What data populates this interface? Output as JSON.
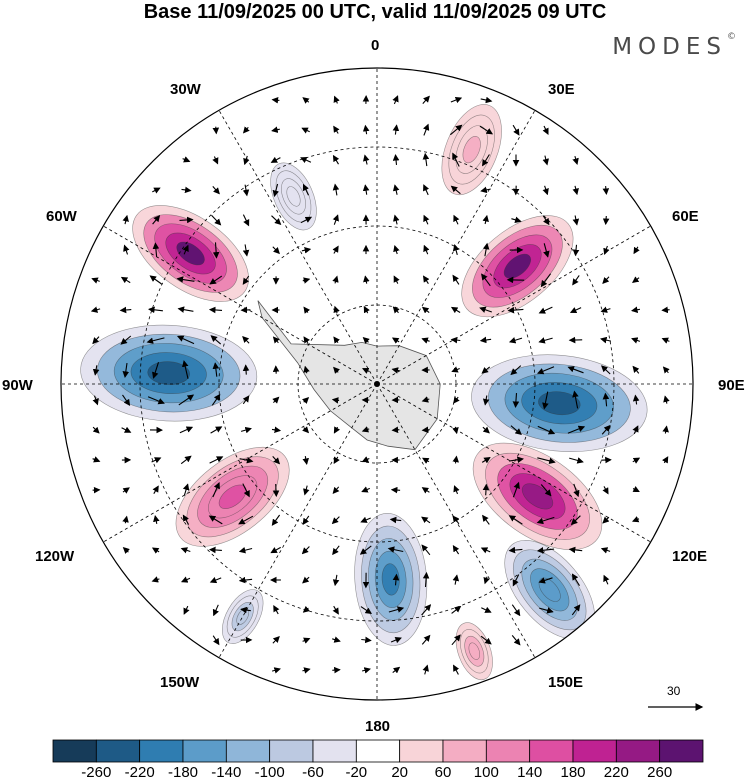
{
  "title": "Base 11/09/2025 00 UTC, valid 11/09/2025 09 UTC",
  "brand": "MODES",
  "brand_mark": "©",
  "longitude_labels": {
    "north": "0",
    "n30e": "30E",
    "n30w": "30W",
    "e60": "60E",
    "w60": "60W",
    "e90": "90E",
    "w90": "90W",
    "e120": "120E",
    "w120": "120W",
    "s150e": "150E",
    "s150w": "150W",
    "south": "180"
  },
  "vector_reference": {
    "value": "30"
  },
  "colorbar": {
    "ticks": [
      "-260",
      "-220",
      "-180",
      "-140",
      "-100",
      "-60",
      "-20",
      "20",
      "60",
      "100",
      "140",
      "180",
      "220",
      "260"
    ],
    "colors": [
      "#163b59",
      "#1e5a86",
      "#2f7db1",
      "#5c9cc9",
      "#8fb6d9",
      "#bcc9e1",
      "#e3e2ef",
      "#ffffff",
      "#f8d4d8",
      "#f4adc3",
      "#ec83b2",
      "#de4fa2",
      "#bf2292",
      "#951a84",
      "#5c1370"
    ]
  },
  "map": {
    "fields": [
      {
        "lon": 50,
        "colat": 0.58,
        "size": 0.9,
        "value": 260
      },
      {
        "lon": 96,
        "colat": 0.58,
        "size": 1.2,
        "value": -260
      },
      {
        "lon": 125,
        "colat": 0.62,
        "size": 1.0,
        "value": 240
      },
      {
        "lon": 140,
        "colat": 0.85,
        "size": 0.8,
        "value": -180
      },
      {
        "lon": 176,
        "colat": 0.62,
        "size": 0.9,
        "value": -200
      },
      {
        "lon": -128,
        "colat": 0.58,
        "size": 0.9,
        "value": 170
      },
      {
        "lon": -87,
        "colat": 0.66,
        "size": 1.2,
        "value": -260
      },
      {
        "lon": -55,
        "colat": 0.72,
        "size": 0.9,
        "value": 260
      },
      {
        "lon": -24,
        "colat": 0.65,
        "size": 0.6,
        "value": -60
      },
      {
        "lon": 22,
        "colat": 0.8,
        "size": 0.8,
        "value": 70
      },
      {
        "lon": -150,
        "colat": 0.85,
        "size": 0.5,
        "value": -90
      },
      {
        "lon": 160,
        "colat": 0.9,
        "size": 0.5,
        "value": 90
      }
    ]
  }
}
